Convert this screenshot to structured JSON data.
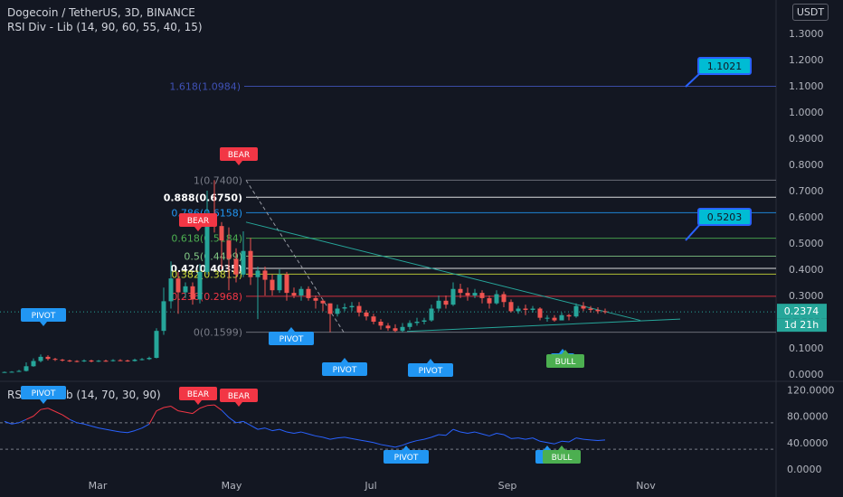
{
  "header": {
    "symbol_line": "Dogecoin / TetherUS, 3D, BINANCE",
    "indicator_line": "RSI Div - Lib (14, 90, 60, 55, 40, 15)"
  },
  "currency_button": "USDT",
  "rsi_pane": {
    "legend": "RSI Div - Lib (14, 70, 30, 90)"
  },
  "chart_data": [
    {
      "type": "candlestick",
      "title": "Dogecoin / TetherUS, 3D, BINANCE",
      "y_axis_ticks": [
        "1.3000",
        "1.2000",
        "1.1000",
        "1.0000",
        "0.9000",
        "0.8000",
        "0.7000",
        "0.6000",
        "0.5000",
        "0.4000",
        "0.3000",
        "0.2000",
        "0.1000",
        "0.0000"
      ],
      "ylim": [
        0.0,
        1.35
      ],
      "x_axis_ticks": [
        "Mar",
        "May",
        "Jul",
        "Sep",
        "Nov"
      ],
      "current_price": {
        "value": "0.2374",
        "countdown": "1d 21h"
      },
      "series": [
        {
          "values": [
            [
              0.008,
              0.008,
              0.006,
              0.01
            ],
            [
              0.008,
              0.009,
              0.007,
              0.011
            ],
            [
              0.009,
              0.012,
              0.008,
              0.016
            ],
            [
              0.012,
              0.03,
              0.01,
              0.045
            ],
            [
              0.03,
              0.05,
              0.028,
              0.06
            ],
            [
              0.05,
              0.066,
              0.045,
              0.075
            ],
            [
              0.066,
              0.058,
              0.052,
              0.072
            ],
            [
              0.058,
              0.055,
              0.05,
              0.062
            ],
            [
              0.055,
              0.052,
              0.048,
              0.058
            ],
            [
              0.052,
              0.05,
              0.046,
              0.055
            ],
            [
              0.05,
              0.049,
              0.045,
              0.053
            ],
            [
              0.049,
              0.052,
              0.046,
              0.056
            ],
            [
              0.052,
              0.048,
              0.045,
              0.055
            ],
            [
              0.048,
              0.051,
              0.046,
              0.054
            ],
            [
              0.051,
              0.05,
              0.047,
              0.055
            ],
            [
              0.05,
              0.053,
              0.048,
              0.057
            ],
            [
              0.053,
              0.052,
              0.049,
              0.057
            ],
            [
              0.052,
              0.05,
              0.047,
              0.055
            ],
            [
              0.05,
              0.055,
              0.048,
              0.059
            ],
            [
              0.055,
              0.057,
              0.052,
              0.061
            ],
            [
              0.057,
              0.062,
              0.054,
              0.067
            ],
            [
              0.062,
              0.165,
              0.06,
              0.175
            ],
            [
              0.165,
              0.278,
              0.15,
              0.33
            ],
            [
              0.278,
              0.365,
              0.25,
              0.43
            ],
            [
              0.365,
              0.312,
              0.23,
              0.39
            ],
            [
              0.312,
              0.335,
              0.29,
              0.35
            ],
            [
              0.335,
              0.285,
              0.265,
              0.35
            ],
            [
              0.285,
              0.39,
              0.27,
              0.42
            ],
            [
              0.39,
              0.575,
              0.38,
              0.7
            ],
            [
              0.575,
              0.565,
              0.54,
              0.74
            ],
            [
              0.565,
              0.51,
              0.4,
              0.58
            ],
            [
              0.51,
              0.44,
              0.32,
              0.56
            ],
            [
              0.44,
              0.38,
              0.35,
              0.48
            ],
            [
              0.38,
              0.47,
              0.37,
              0.545
            ],
            [
              0.47,
              0.37,
              0.34,
              0.52
            ],
            [
              0.37,
              0.395,
              0.21,
              0.41
            ],
            [
              0.395,
              0.36,
              0.3,
              0.41
            ],
            [
              0.36,
              0.32,
              0.3,
              0.38
            ],
            [
              0.32,
              0.38,
              0.31,
              0.4
            ],
            [
              0.38,
              0.31,
              0.28,
              0.39
            ],
            [
              0.31,
              0.3,
              0.29,
              0.33
            ],
            [
              0.3,
              0.325,
              0.28,
              0.335
            ],
            [
              0.325,
              0.29,
              0.28,
              0.335
            ],
            [
              0.29,
              0.28,
              0.25,
              0.3
            ],
            [
              0.28,
              0.27,
              0.24,
              0.285
            ],
            [
              0.27,
              0.23,
              0.16,
              0.27
            ],
            [
              0.23,
              0.25,
              0.22,
              0.265
            ],
            [
              0.25,
              0.255,
              0.24,
              0.27
            ],
            [
              0.255,
              0.26,
              0.24,
              0.275
            ],
            [
              0.26,
              0.235,
              0.22,
              0.275
            ],
            [
              0.235,
              0.22,
              0.205,
              0.245
            ],
            [
              0.22,
              0.2,
              0.19,
              0.23
            ],
            [
              0.2,
              0.185,
              0.17,
              0.21
            ],
            [
              0.185,
              0.175,
              0.165,
              0.195
            ],
            [
              0.175,
              0.165,
              0.16,
              0.19
            ],
            [
              0.165,
              0.18,
              0.16,
              0.195
            ],
            [
              0.18,
              0.195,
              0.17,
              0.205
            ],
            [
              0.195,
              0.2,
              0.185,
              0.215
            ],
            [
              0.2,
              0.205,
              0.19,
              0.215
            ],
            [
              0.205,
              0.25,
              0.2,
              0.265
            ],
            [
              0.25,
              0.28,
              0.24,
              0.3
            ],
            [
              0.28,
              0.265,
              0.25,
              0.3
            ],
            [
              0.265,
              0.325,
              0.26,
              0.35
            ],
            [
              0.325,
              0.31,
              0.29,
              0.345
            ],
            [
              0.31,
              0.3,
              0.28,
              0.33
            ],
            [
              0.3,
              0.31,
              0.29,
              0.325
            ],
            [
              0.31,
              0.29,
              0.27,
              0.32
            ],
            [
              0.29,
              0.27,
              0.25,
              0.3
            ],
            [
              0.27,
              0.305,
              0.265,
              0.32
            ],
            [
              0.305,
              0.275,
              0.255,
              0.315
            ],
            [
              0.275,
              0.24,
              0.235,
              0.285
            ],
            [
              0.24,
              0.25,
              0.23,
              0.26
            ],
            [
              0.25,
              0.245,
              0.225,
              0.265
            ],
            [
              0.245,
              0.25,
              0.235,
              0.26
            ],
            [
              0.25,
              0.215,
              0.205,
              0.255
            ],
            [
              0.215,
              0.215,
              0.2,
              0.225
            ],
            [
              0.215,
              0.205,
              0.2,
              0.225
            ],
            [
              0.205,
              0.225,
              0.205,
              0.235
            ],
            [
              0.225,
              0.22,
              0.205,
              0.23
            ],
            [
              0.22,
              0.26,
              0.215,
              0.27
            ],
            [
              0.26,
              0.25,
              0.24,
              0.275
            ],
            [
              0.25,
              0.245,
              0.235,
              0.26
            ],
            [
              0.245,
              0.24,
              0.23,
              0.255
            ],
            [
              0.24,
              0.237,
              0.23,
              0.25
            ]
          ]
        }
      ],
      "fibonacci": [
        {
          "label": "1.618(1.0984)",
          "price": 1.0984,
          "color": "#3f51b5"
        },
        {
          "label": "1(0.7400)",
          "price": 0.74,
          "color": "#787b86"
        },
        {
          "label": "0.888(0.6750)",
          "price": 0.675,
          "color": "#ffffff"
        },
        {
          "label": "0.786(0.6158)",
          "price": 0.6158,
          "color": "#2196f3"
        },
        {
          "label": "0.618(0.5184)",
          "price": 0.5184,
          "color": "#4caf50"
        },
        {
          "label": "0.5(0.4499)",
          "price": 0.4499,
          "color": "#81c784"
        },
        {
          "label": "0.42(0.4035)",
          "price": 0.4035,
          "color": "#ffffff"
        },
        {
          "label": "0.382(0.3815)",
          "price": 0.3815,
          "color": "#cddc39"
        },
        {
          "label": "0.236(0.2968)",
          "price": 0.2968,
          "color": "#f23645"
        },
        {
          "label": "0(0.1599)",
          "price": 0.1599,
          "color": "#787b86"
        }
      ],
      "callouts": [
        {
          "text": "1.1021",
          "price": 1.1021
        },
        {
          "text": "0.5203",
          "price": 0.5203
        }
      ],
      "markers": [
        {
          "text": "BEAR",
          "type": "bear"
        },
        {
          "text": "BEAR",
          "type": "bear"
        },
        {
          "text": "PIVOT",
          "type": "pivot"
        },
        {
          "text": "PIVOT",
          "type": "pivot"
        },
        {
          "text": "PIVOT",
          "type": "pivot"
        },
        {
          "text": "PIVOT",
          "type": "pivot"
        },
        {
          "text": "PI",
          "type": "pivot"
        },
        {
          "text": "BULL",
          "type": "bull"
        }
      ]
    },
    {
      "type": "line",
      "title": "RSI Div - Lib (14, 70, 30, 90)",
      "y_axis_ticks": [
        "120.0000",
        "80.0000",
        "40.0000",
        "0.0000"
      ],
      "ylim": [
        0,
        130
      ],
      "levels": [
        70,
        30
      ],
      "series": [
        {
          "values": [
            72,
            68,
            70,
            75,
            80,
            90,
            92,
            87,
            82,
            75,
            70,
            68,
            65,
            62,
            60,
            58,
            56,
            55,
            58,
            62,
            68,
            88,
            93,
            95,
            88,
            86,
            84,
            92,
            96,
            97,
            89,
            78,
            70,
            72,
            66,
            60,
            62,
            58,
            60,
            56,
            54,
            56,
            53,
            50,
            48,
            45,
            47,
            48,
            46,
            44,
            42,
            40,
            37,
            35,
            33,
            36,
            40,
            43,
            45,
            48,
            52,
            51,
            60,
            56,
            54,
            56,
            53,
            50,
            54,
            52,
            46,
            47,
            45,
            47,
            42,
            40,
            38,
            42,
            41,
            47,
            45,
            44,
            43,
            44
          ]
        }
      ],
      "markers": [
        {
          "text": "PIVOT",
          "type": "pivot"
        },
        {
          "text": "BEAR",
          "type": "bear"
        },
        {
          "text": "BEAR",
          "type": "bear"
        },
        {
          "text": "PIVOT",
          "type": "pivot"
        },
        {
          "text": "PI",
          "type": "pivot"
        },
        {
          "text": "BULL",
          "type": "bull"
        }
      ]
    }
  ]
}
